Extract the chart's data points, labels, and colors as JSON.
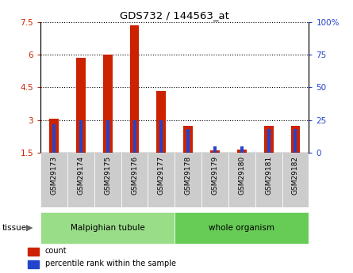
{
  "title": "GDS732 / 144563_at",
  "samples": [
    "GSM29173",
    "GSM29174",
    "GSM29175",
    "GSM29176",
    "GSM29177",
    "GSM29178",
    "GSM29179",
    "GSM29180",
    "GSM29181",
    "GSM29182"
  ],
  "count_values": [
    3.05,
    5.85,
    6.0,
    7.35,
    4.35,
    2.75,
    1.62,
    1.65,
    2.75,
    2.75
  ],
  "percentile_values": [
    22,
    25,
    25,
    25,
    25,
    18,
    5,
    5,
    18,
    18
  ],
  "ylim_left": [
    1.5,
    7.5
  ],
  "ylim_right": [
    0,
    100
  ],
  "yticks_left": [
    1.5,
    3.0,
    4.5,
    6.0,
    7.5
  ],
  "yticks_right": [
    0,
    25,
    50,
    75,
    100
  ],
  "ytick_labels_left": [
    "1.5",
    "3",
    "4.5",
    "6",
    "7.5"
  ],
  "ytick_labels_right": [
    "0",
    "25",
    "50",
    "75",
    "100%"
  ],
  "bar_color": "#cc2200",
  "percentile_color": "#2244cc",
  "bar_bottom": 1.5,
  "groups": [
    {
      "label": "Malpighian tubule",
      "start": 0,
      "end": 5,
      "color": "#99dd88"
    },
    {
      "label": "whole organism",
      "start": 5,
      "end": 10,
      "color": "#66cc55"
    }
  ],
  "tissue_label": "tissue",
  "legend_items": [
    {
      "label": "count",
      "color": "#cc2200"
    },
    {
      "label": "percentile rank within the sample",
      "color": "#2244cc"
    }
  ],
  "background_color": "#ffffff",
  "bar_bg_color": "#cccccc",
  "bar_width": 0.35,
  "pct_bar_width": 0.12
}
